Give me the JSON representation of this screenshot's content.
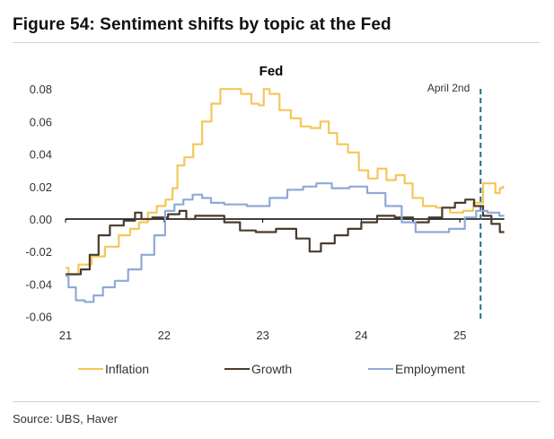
{
  "figure": {
    "title": "Figure 54: Sentiment shifts by topic at the Fed",
    "source": "Source: UBS, Haver"
  },
  "chart_data": {
    "type": "line",
    "title": "Fed",
    "xlabel": "",
    "ylabel": "",
    "xlim": [
      21,
      25.45
    ],
    "ylim": [
      -0.06,
      0.08
    ],
    "x_ticks": [
      21,
      22,
      23,
      24,
      25
    ],
    "x_tick_labels": [
      "21",
      "22",
      "23",
      "24",
      "25"
    ],
    "y_ticks": [
      0.08,
      0.06,
      0.04,
      0.02,
      0.0,
      -0.02,
      -0.04,
      -0.06
    ],
    "y_tick_labels": [
      "0.08",
      "0.06",
      "0.04",
      "0.02",
      "0.00",
      "-0.02",
      "-0.04",
      "-0.06"
    ],
    "grid": false,
    "legend_position": "bottom",
    "annotations": [
      {
        "type": "vertical-dashed-line",
        "x": 25.21,
        "label": "April 2nd",
        "color": "#1f6e8c"
      }
    ],
    "series": [
      {
        "name": "Inflation",
        "color": "#f5c75a",
        "x": [
          21.0,
          21.06,
          21.2,
          21.33,
          21.47,
          21.61,
          21.7,
          21.79,
          21.88,
          21.97,
          22.06,
          22.11,
          22.16,
          22.25,
          22.34,
          22.43,
          22.53,
          22.61,
          22.72,
          22.84,
          22.93,
          22.99,
          23.03,
          23.11,
          23.23,
          23.34,
          23.43,
          23.54,
          23.63,
          23.71,
          23.8,
          23.93,
          24.02,
          24.12,
          24.21,
          24.3,
          24.4,
          24.48,
          24.56,
          24.69,
          24.83,
          24.97,
          25.1,
          25.17,
          25.21,
          25.26,
          25.33,
          25.39,
          25.42,
          25.45
        ],
        "values": [
          -0.03,
          -0.034,
          -0.028,
          -0.023,
          -0.017,
          -0.01,
          -0.006,
          -0.002,
          0.004,
          0.008,
          0.012,
          0.019,
          0.033,
          0.038,
          0.046,
          0.06,
          0.071,
          0.08,
          0.08,
          0.077,
          0.071,
          0.07,
          0.08,
          0.077,
          0.067,
          0.062,
          0.057,
          0.056,
          0.06,
          0.053,
          0.046,
          0.041,
          0.03,
          0.025,
          0.031,
          0.024,
          0.027,
          0.022,
          0.013,
          0.008,
          0.007,
          0.004,
          0.005,
          0.01,
          0.01,
          0.022,
          0.022,
          0.016,
          0.019,
          0.02
        ]
      },
      {
        "name": "Growth",
        "color": "#4a3b2c",
        "x": [
          21.0,
          21.11,
          21.2,
          21.29,
          21.38,
          21.52,
          21.66,
          21.75,
          21.79,
          21.97,
          22.11,
          22.2,
          22.25,
          22.38,
          22.52,
          22.7,
          22.84,
          23.02,
          23.25,
          23.43,
          23.52,
          23.66,
          23.8,
          23.93,
          24.07,
          24.25,
          24.43,
          24.62,
          24.75,
          24.89,
          25.01,
          25.1,
          25.19,
          25.28,
          25.36,
          25.45
        ],
        "values": [
          -0.034,
          -0.034,
          -0.031,
          -0.022,
          -0.01,
          -0.004,
          -0.001,
          0.004,
          0.0,
          0.001,
          0.003,
          0.005,
          0.0,
          0.002,
          0.002,
          -0.002,
          -0.007,
          -0.008,
          -0.006,
          -0.012,
          -0.02,
          -0.015,
          -0.01,
          -0.006,
          -0.002,
          0.002,
          0.001,
          -0.002,
          0.001,
          0.007,
          0.01,
          0.012,
          0.008,
          0.002,
          -0.003,
          -0.008
        ]
      },
      {
        "name": "Employment",
        "color": "#8fa9d6",
        "x": [
          21.0,
          21.06,
          21.15,
          21.24,
          21.33,
          21.43,
          21.57,
          21.7,
          21.84,
          21.96,
          22.06,
          22.15,
          22.24,
          22.34,
          22.43,
          22.52,
          22.7,
          22.98,
          23.16,
          23.34,
          23.48,
          23.61,
          23.79,
          23.97,
          24.15,
          24.34,
          24.48,
          24.62,
          24.8,
          24.98,
          25.12,
          25.21,
          25.35,
          25.45
        ],
        "values": [
          -0.035,
          -0.042,
          -0.05,
          -0.051,
          -0.047,
          -0.042,
          -0.038,
          -0.031,
          -0.022,
          -0.01,
          0.005,
          0.009,
          0.012,
          0.015,
          0.013,
          0.01,
          0.009,
          0.008,
          0.013,
          0.018,
          0.02,
          0.022,
          0.019,
          0.02,
          0.016,
          0.008,
          -0.002,
          -0.008,
          -0.008,
          -0.006,
          0.001,
          0.005,
          0.004,
          0.002
        ]
      }
    ]
  }
}
